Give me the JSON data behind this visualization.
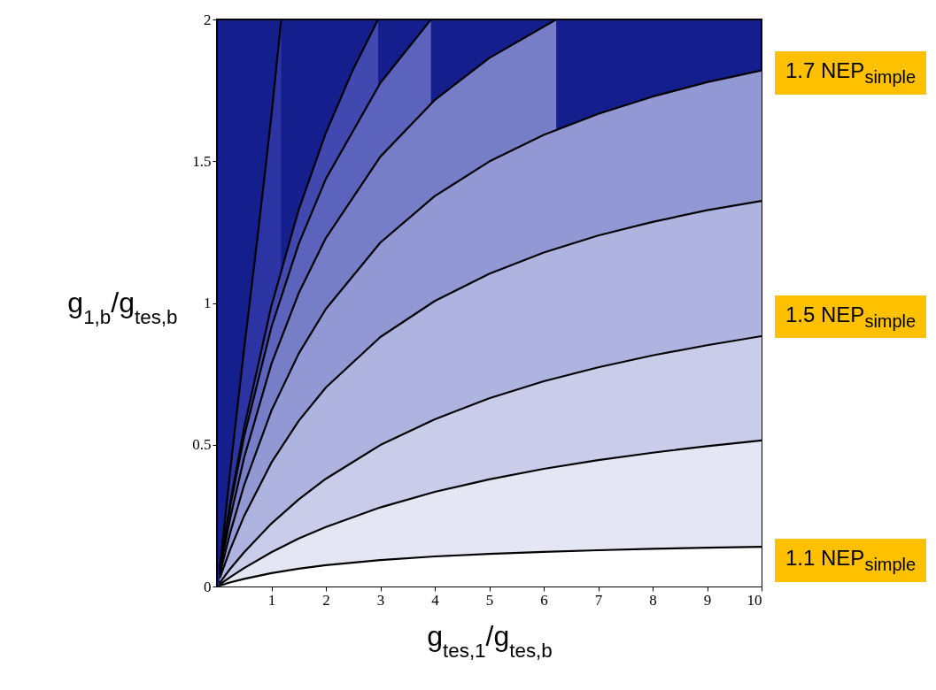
{
  "chart_data": {
    "type": "area",
    "xlabel": "g$_{tes,1}$/g$_{tes,b}$",
    "ylabel": "g$_{1,b}$/g$_{tes,b}$",
    "xlim": [
      0,
      10
    ],
    "xticks": [
      1,
      2,
      3,
      4,
      5,
      6,
      7,
      8,
      9,
      10
    ],
    "ylim": [
      0,
      2
    ],
    "yticks": [
      0,
      0.5,
      1,
      1.5,
      2
    ],
    "line_style": "solid",
    "annotations": [
      "1.7 NEP$_{simple}$",
      "1.5 NEP$_{simple}$",
      "1.1 NEP$_{simple}$"
    ],
    "series": [
      {
        "color": "#2b34a2",
        "x": [
          0.05,
          0.25,
          0.5,
          0.75,
          1,
          1.18
        ],
        "values": [
          0.06,
          0.42,
          0.84,
          1.24,
          1.66,
          2.0
        ]
      },
      {
        "color": "#4149b0",
        "x": [
          0.05,
          0.25,
          0.5,
          1,
          1.5,
          2,
          2.5,
          2.96
        ],
        "values": [
          0.064,
          0.301,
          0.562,
          0.99,
          1.328,
          1.6,
          1.824,
          2.0
        ]
      },
      {
        "color": "#5c63bc",
        "x": [
          0.05,
          0.25,
          0.5,
          1,
          1.5,
          2,
          3,
          3.93
        ],
        "values": [
          0.062,
          0.288,
          0.53,
          0.915,
          1.208,
          1.438,
          1.776,
          2.0
        ]
      },
      {
        "color": "#777ec8",
        "x": [
          0.05,
          0.25,
          0.5,
          1,
          1.5,
          2,
          3,
          4,
          5,
          6.23
        ],
        "values": [
          0.053,
          0.247,
          0.455,
          0.785,
          1.034,
          1.229,
          1.516,
          1.716,
          1.864,
          2.0
        ]
      },
      {
        "color": "#9298d3",
        "x": [
          0.05,
          0.25,
          0.5,
          1,
          1.5,
          2,
          3,
          4,
          5,
          6,
          7,
          8,
          9,
          10
        ],
        "values": [
          0.042,
          0.194,
          0.358,
          0.62,
          0.821,
          0.979,
          1.213,
          1.377,
          1.499,
          1.593,
          1.667,
          1.728,
          1.779,
          1.82
        ]
      },
      {
        "color": "#aeb3df",
        "x": [
          0.05,
          0.25,
          0.5,
          1,
          1.5,
          2,
          3,
          4,
          5,
          6,
          7,
          8,
          9,
          10
        ],
        "values": [
          0.029,
          0.134,
          0.249,
          0.437,
          0.584,
          0.702,
          0.88,
          1.007,
          1.103,
          1.178,
          1.238,
          1.286,
          1.327,
          1.36
        ]
      },
      {
        "color": "#c9cdea",
        "x": [
          0.05,
          0.25,
          0.5,
          1,
          1.5,
          2,
          3,
          4,
          5,
          6,
          7,
          8,
          9,
          10
        ],
        "values": [
          0.013,
          0.064,
          0.121,
          0.222,
          0.307,
          0.38,
          0.499,
          0.59,
          0.664,
          0.724,
          0.773,
          0.815,
          0.851,
          0.883
        ]
      },
      {
        "color": "#e4e6f4",
        "x": [
          0.05,
          0.25,
          0.5,
          1,
          1.5,
          2,
          3,
          4,
          5,
          6,
          7,
          8,
          9,
          10
        ],
        "values": [
          0.007,
          0.034,
          0.065,
          0.121,
          0.169,
          0.21,
          0.279,
          0.334,
          0.378,
          0.415,
          0.446,
          0.472,
          0.495,
          0.515
        ]
      },
      {
        "color": "#ffffff",
        "x": [
          0.05,
          0.25,
          0.5,
          1,
          1.5,
          2,
          3,
          4,
          5,
          6,
          7,
          8,
          9,
          10
        ],
        "values": [
          0.003,
          0.015,
          0.027,
          0.047,
          0.063,
          0.075,
          0.093,
          0.106,
          0.115,
          0.122,
          0.128,
          0.133,
          0.137,
          0.14
        ]
      }
    ]
  }
}
